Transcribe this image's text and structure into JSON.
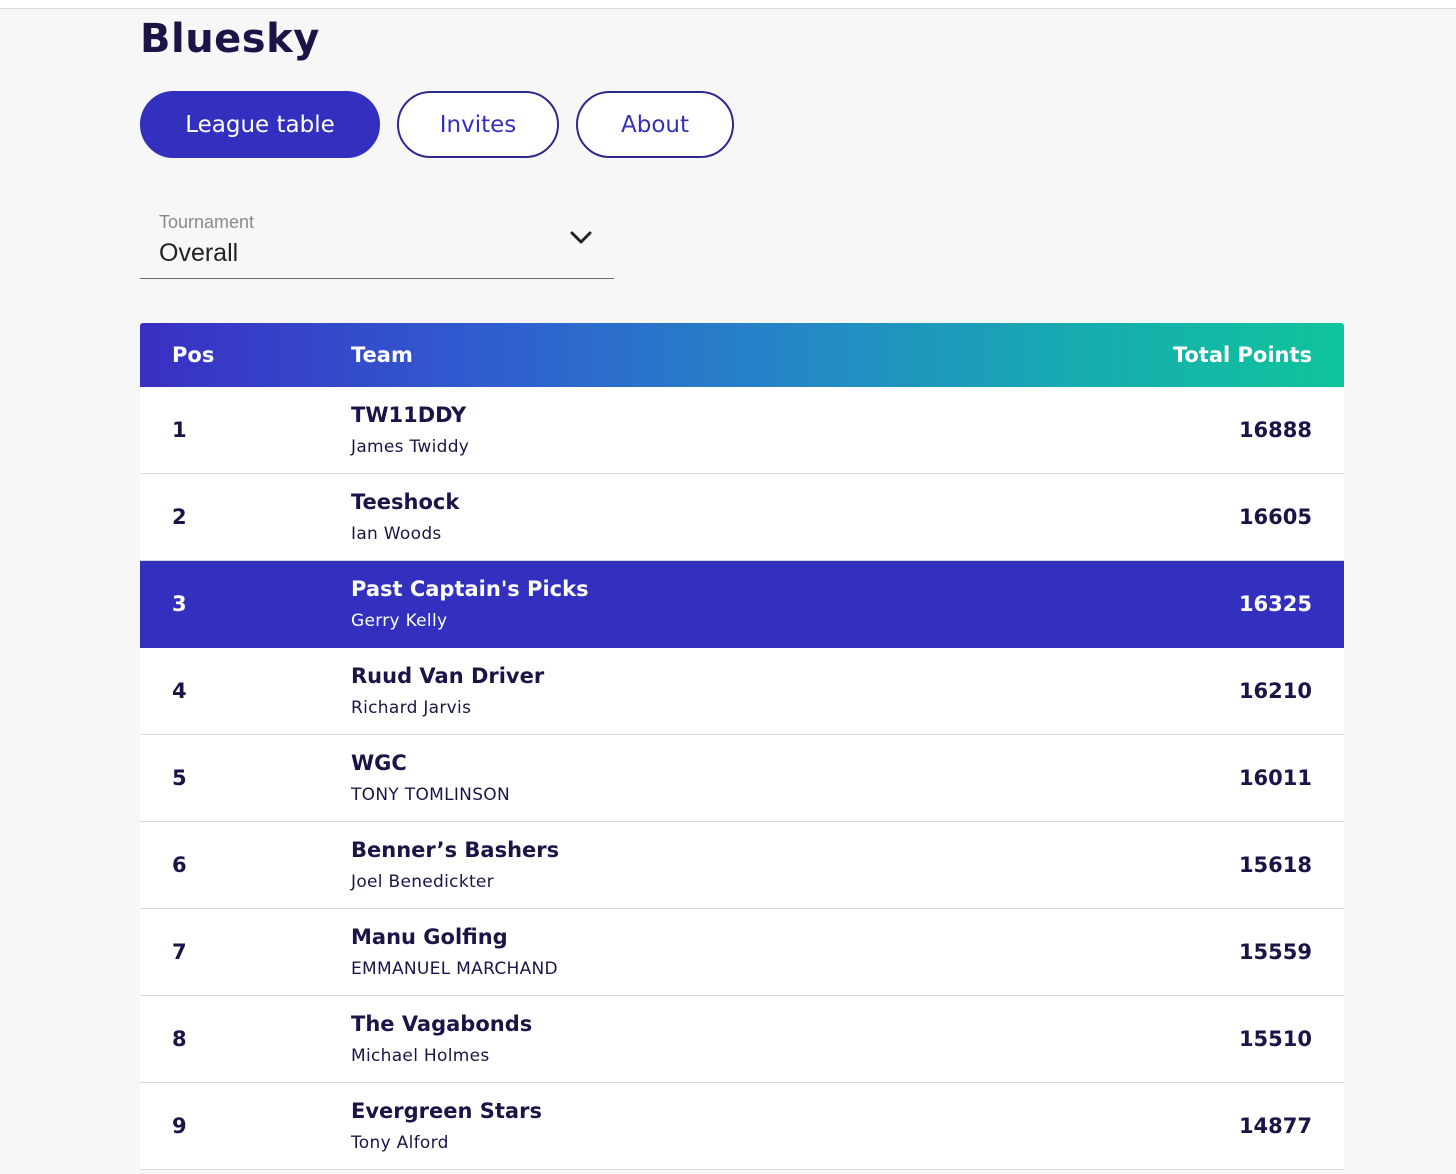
{
  "league": {
    "title": "Bluesky"
  },
  "tabs": [
    {
      "label": "League table",
      "active": true
    },
    {
      "label": "Invites",
      "active": false
    },
    {
      "label": "About",
      "active": false
    }
  ],
  "tournament_select": {
    "label": "Tournament",
    "value": "Overall",
    "icon": "chevron-down-icon"
  },
  "table": {
    "headers": {
      "pos": "Pos",
      "team": "Team",
      "points": "Total Points"
    },
    "rows": [
      {
        "pos": "1",
        "team": "TW11DDY",
        "manager": "James Twiddy",
        "points": "16888",
        "highlighted": false
      },
      {
        "pos": "2",
        "team": "Teeshock",
        "manager": "Ian Woods",
        "points": "16605",
        "highlighted": false
      },
      {
        "pos": "3",
        "team": "Past Captain's Picks",
        "manager": "Gerry Kelly",
        "points": "16325",
        "highlighted": true
      },
      {
        "pos": "4",
        "team": "Ruud Van Driver",
        "manager": "Richard Jarvis",
        "points": "16210",
        "highlighted": false
      },
      {
        "pos": "5",
        "team": "WGC",
        "manager": "TONY TOMLINSON",
        "points": "16011",
        "highlighted": false
      },
      {
        "pos": "6",
        "team": "Benner’s Bashers",
        "manager": "Joel Benedickter",
        "points": "15618",
        "highlighted": false
      },
      {
        "pos": "7",
        "team": "Manu Golfing",
        "manager": "EMMANUEL MARCHAND",
        "points": "15559",
        "highlighted": false
      },
      {
        "pos": "8",
        "team": "The Vagabonds",
        "manager": "Michael Holmes",
        "points": "15510",
        "highlighted": false
      },
      {
        "pos": "9",
        "team": "Evergreen Stars",
        "manager": "Tony Alford",
        "points": "14877",
        "highlighted": false
      }
    ]
  },
  "colors": {
    "brand_primary": "#3330c0",
    "text_dark": "#1c1447",
    "header_gradient_start": "#3a2fc4",
    "header_gradient_end": "#0fc49a"
  }
}
